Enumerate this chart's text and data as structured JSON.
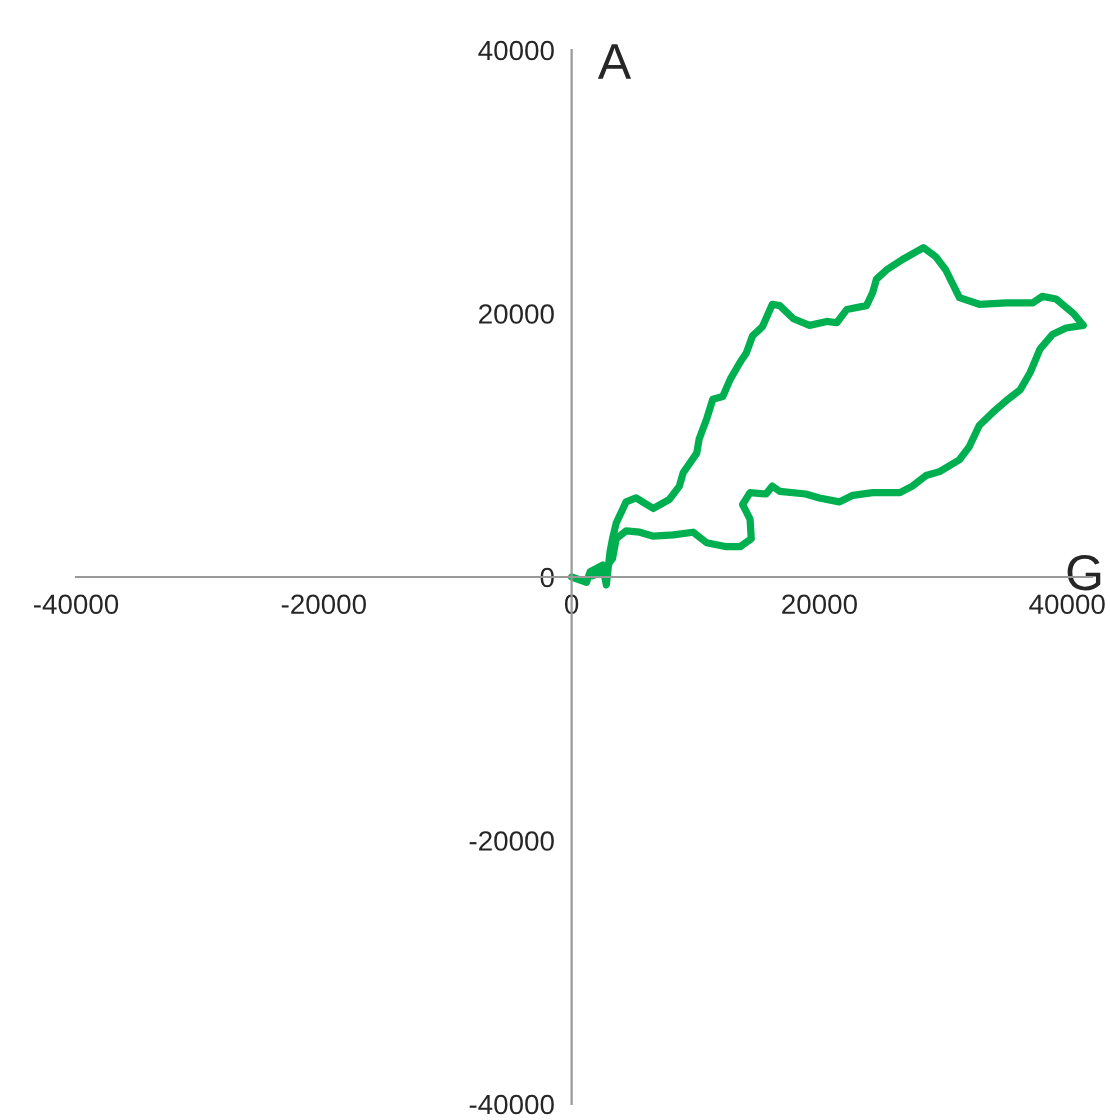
{
  "chart_data": {
    "type": "line",
    "xlabel": "G",
    "ylabel": "A",
    "xlim": [
      -40000,
      42000
    ],
    "ylim": [
      -40000,
      40000
    ],
    "xticks": [
      -40000,
      -20000,
      0,
      20000,
      40000
    ],
    "yticks": [
      -40000,
      -20000,
      0,
      20000,
      40000
    ],
    "grid": false,
    "legend": false,
    "marker": "none",
    "line_style": "solid",
    "series": [
      {
        "color": "#00b050",
        "x": [
          0,
          1200,
          1500,
          2500,
          2800,
          3100,
          3300,
          3600,
          4400,
          5200,
          6600,
          7900,
          8700,
          9000,
          10100,
          10300,
          10900,
          11400,
          12200,
          12800,
          13600,
          14100,
          14600,
          15400,
          16200,
          16800,
          17900,
          19200,
          20600,
          21400,
          22200,
          23800,
          24300,
          24600,
          25400,
          26700,
          28400,
          29400,
          30200,
          31300,
          32900,
          35100,
          37200,
          38000,
          39100,
          40500,
          41300,
          39900,
          38800,
          37800,
          37000,
          36200,
          35100,
          34000,
          32900,
          32100,
          31300,
          29700,
          28600,
          27500,
          26500,
          24300,
          22700,
          21600,
          20000,
          18900,
          16800,
          16200,
          15700,
          14400,
          13800,
          14400,
          14500,
          13600,
          12500,
          10900,
          9800,
          8200,
          6600,
          5500,
          4400,
          3600,
          3300,
          2500,
          1700
        ],
        "values": [
          0,
          -400,
          400,
          900,
          -600,
          1900,
          2900,
          4100,
          5700,
          6000,
          5200,
          5900,
          6900,
          7900,
          9400,
          10500,
          12000,
          13500,
          13700,
          15000,
          16300,
          17000,
          18300,
          19000,
          20700,
          20600,
          19600,
          19100,
          19400,
          19300,
          20300,
          20600,
          21600,
          22600,
          23300,
          24100,
          25000,
          24300,
          23300,
          21200,
          20700,
          20800,
          20800,
          21300,
          21100,
          20000,
          19100,
          18900,
          18400,
          17300,
          15500,
          14200,
          13400,
          12500,
          11500,
          9900,
          8900,
          8000,
          7700,
          6900,
          6400,
          6400,
          6200,
          5700,
          6000,
          6300,
          6500,
          6900,
          6300,
          6400,
          5500,
          4400,
          2900,
          2300,
          2300,
          2600,
          3400,
          3200,
          3100,
          3400,
          3500,
          2900,
          1400,
          400,
          100
        ]
      }
    ]
  }
}
